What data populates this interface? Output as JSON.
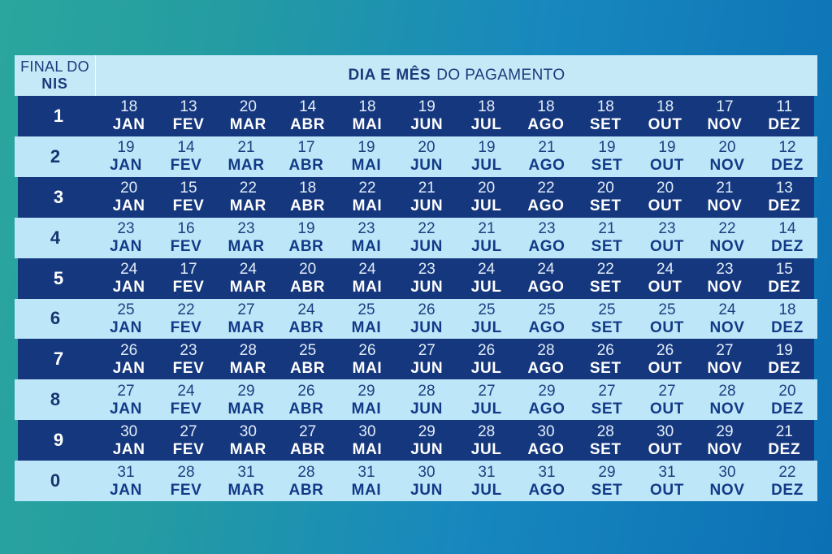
{
  "colors": {
    "background_teal": "#2BA69E",
    "background_blue": "#0C70B5",
    "header_bg": "#C6E9F7",
    "light_row_bg": "#BEE6F9",
    "dark_row_bg": "#15377E",
    "navy_text": "#1B3A7C",
    "white_text": "#FFFFFF"
  },
  "header": {
    "col1_line1": "FINAL DO",
    "col1_line2": "NIS",
    "title_bold": "DIA E MÊS",
    "title_regular": "DO PAGAMENTO"
  },
  "chart_data": {
    "type": "table",
    "title": "DIA E MÊS DO PAGAMENTO",
    "row_header_label": "FINAL DO NIS",
    "columns": [
      "JAN",
      "FEV",
      "MAR",
      "ABR",
      "MAI",
      "JUN",
      "JUL",
      "AGO",
      "SET",
      "OUT",
      "NOV",
      "DEZ"
    ],
    "rows": [
      {
        "nis": "1",
        "days": [
          18,
          13,
          20,
          14,
          18,
          19,
          18,
          18,
          18,
          18,
          17,
          11
        ]
      },
      {
        "nis": "2",
        "days": [
          19,
          14,
          21,
          17,
          19,
          20,
          19,
          21,
          19,
          19,
          20,
          12
        ]
      },
      {
        "nis": "3",
        "days": [
          20,
          15,
          22,
          18,
          22,
          21,
          20,
          22,
          20,
          20,
          21,
          13
        ]
      },
      {
        "nis": "4",
        "days": [
          23,
          16,
          23,
          19,
          23,
          22,
          21,
          23,
          21,
          23,
          22,
          14
        ]
      },
      {
        "nis": "5",
        "days": [
          24,
          17,
          24,
          20,
          24,
          23,
          24,
          24,
          22,
          24,
          23,
          15
        ]
      },
      {
        "nis": "6",
        "days": [
          25,
          22,
          27,
          24,
          25,
          26,
          25,
          25,
          25,
          25,
          24,
          18
        ]
      },
      {
        "nis": "7",
        "days": [
          26,
          23,
          28,
          25,
          26,
          27,
          26,
          28,
          26,
          26,
          27,
          19
        ]
      },
      {
        "nis": "8",
        "days": [
          27,
          24,
          29,
          26,
          29,
          28,
          27,
          29,
          27,
          27,
          28,
          20
        ]
      },
      {
        "nis": "9",
        "days": [
          30,
          27,
          30,
          27,
          30,
          29,
          28,
          30,
          28,
          30,
          29,
          21
        ]
      },
      {
        "nis": "0",
        "days": [
          31,
          28,
          31,
          28,
          31,
          30,
          31,
          31,
          29,
          31,
          30,
          22
        ]
      }
    ]
  }
}
